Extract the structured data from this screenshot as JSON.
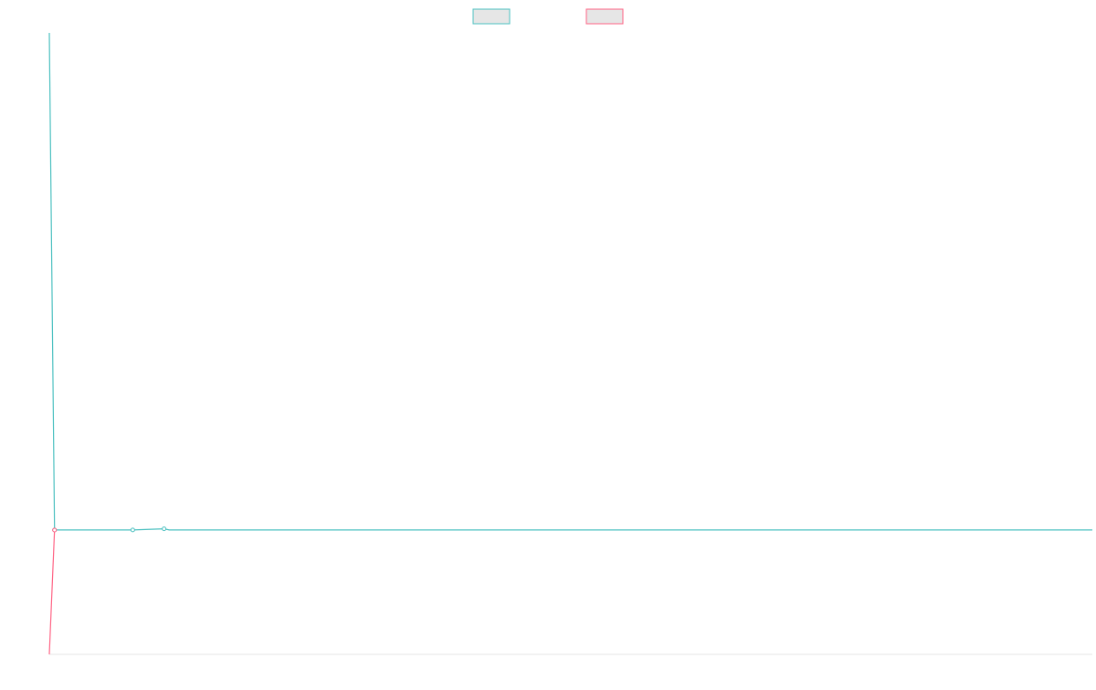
{
  "chart_data": {
    "type": "line",
    "title": "",
    "xlabel": "",
    "ylabel": "",
    "legend": {
      "placement": "top-center",
      "entries": [
        {
          "label": "",
          "color": "#4bc0c0",
          "fill": "#e6e6e6"
        },
        {
          "label": "",
          "color": "#ff6384",
          "fill": "#e6e6e6"
        }
      ]
    },
    "grid": false,
    "xlim": [
      0,
      100
    ],
    "ylim": [
      -1,
      4
    ],
    "series": [
      {
        "color": "#4bc0c0",
        "points": [
          [
            0,
            4
          ],
          [
            0.5,
            0.001
          ],
          [
            8,
            0.001
          ],
          [
            11,
            0.01
          ],
          [
            11.5,
            0.001
          ],
          [
            100,
            0.001
          ]
        ],
        "markers": [
          [
            0.5,
            0.001
          ],
          [
            8,
            0.001
          ],
          [
            11,
            0.01
          ]
        ]
      },
      {
        "color": "#ff6384",
        "points": [
          [
            0,
            -1
          ],
          [
            0.5,
            0
          ]
        ],
        "markers": [
          [
            0.5,
            0
          ]
        ]
      }
    ]
  }
}
